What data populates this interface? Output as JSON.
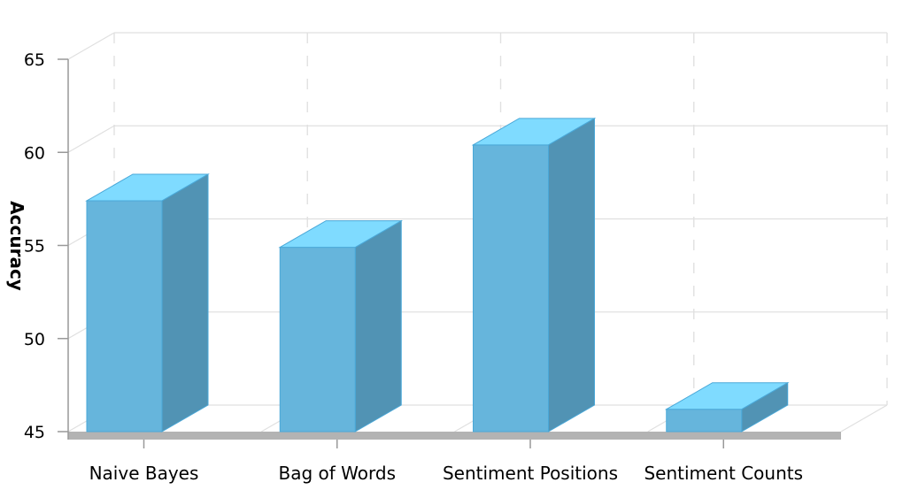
{
  "chart_data": {
    "type": "bar",
    "title": "",
    "xlabel": "",
    "ylabel": "Accuracy",
    "categories": [
      "Naive Bayes",
      "Bag of Words",
      "Sentiment Positions",
      "Sentiment Counts"
    ],
    "values": [
      57.4,
      54.9,
      60.4,
      46.2
    ],
    "ylim": [
      45,
      65
    ],
    "yticks": [
      "45",
      "50",
      "55",
      "60",
      "65"
    ],
    "grid": true,
    "three_d": true,
    "legend": "none",
    "colors": {
      "bar_front": "#66b5dc",
      "bar_side": "#5193b4",
      "bar_top": "#7fdbff",
      "bar_edge": "#4aa8d8",
      "floor": "#b3b3b3",
      "grid": "#e0e0e0",
      "axis": "#999999"
    }
  }
}
